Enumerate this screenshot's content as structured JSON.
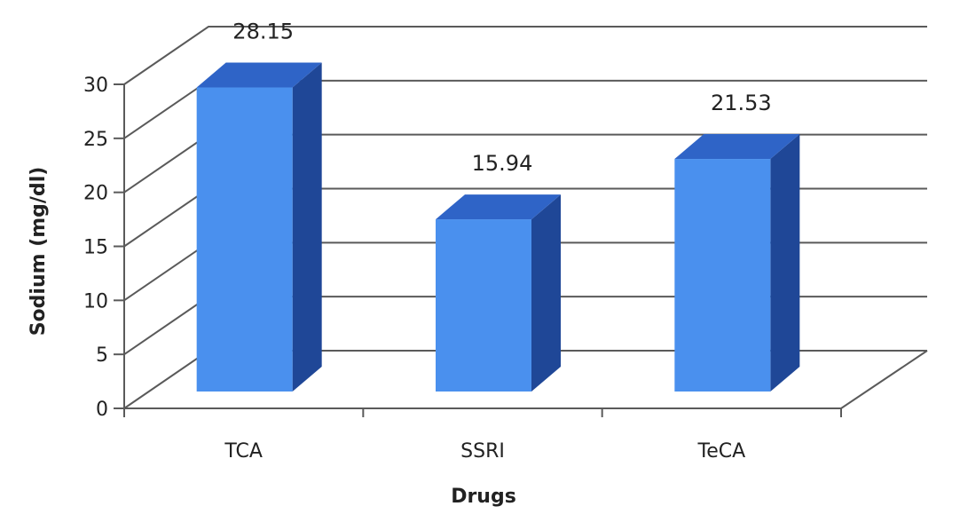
{
  "chart_data": {
    "type": "bar",
    "categories": [
      "TCA",
      "SSRI",
      "TeCA"
    ],
    "values": [
      28.15,
      15.94,
      21.53
    ],
    "data_labels": [
      "28.15",
      "15.94",
      "21.53"
    ],
    "xlabel": "Drugs",
    "ylabel": "Sodium (mg/dl)",
    "ylim": [
      0,
      30
    ],
    "yticks": [
      "0",
      "5",
      "10",
      "15",
      "20",
      "25",
      "30"
    ],
    "grid": true,
    "style": "3d-column",
    "colors": {
      "front": "#4a90ee",
      "side": "#1f4797",
      "top": "#2f64c7",
      "grid": "#5a5a5a"
    }
  }
}
